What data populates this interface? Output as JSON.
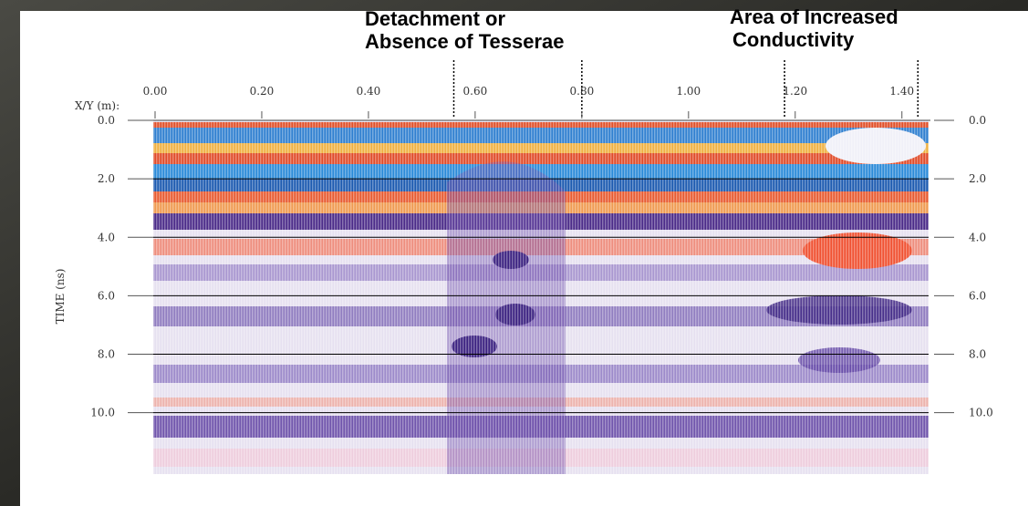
{
  "chart_data": {
    "type": "radargram",
    "annotations": [
      "Detachment or",
      "Absence of Tesserae",
      "Area of Increased",
      "Conductivity"
    ],
    "x_label": "X/Y (m):",
    "y_label": "TIME (ns)",
    "xlim": [
      0,
      1.45
    ],
    "ylim": [
      0,
      12.1
    ],
    "xticks": [
      {
        "value": 0,
        "label": "0.00"
      },
      {
        "value": 0.2,
        "label": "0.20"
      },
      {
        "value": 0.4,
        "label": "0.40"
      },
      {
        "value": 0.6,
        "label": "0.60"
      },
      {
        "value": 0.8,
        "label": "0.80"
      },
      {
        "value": 1,
        "label": "1.00"
      },
      {
        "value": 1.2,
        "label": "1.20"
      },
      {
        "value": 1.4,
        "label": "1.40"
      }
    ],
    "yticks": [
      {
        "value": 0,
        "label": "0.0"
      },
      {
        "value": 2,
        "label": "2.0"
      },
      {
        "value": 4,
        "label": "4.0"
      },
      {
        "value": 6,
        "label": "6.0"
      },
      {
        "value": 8,
        "label": "8.0"
      },
      {
        "value": 10,
        "label": "10.0"
      }
    ],
    "markers": [
      0.56,
      0.8,
      1.18,
      1.43
    ],
    "grid": true
  }
}
